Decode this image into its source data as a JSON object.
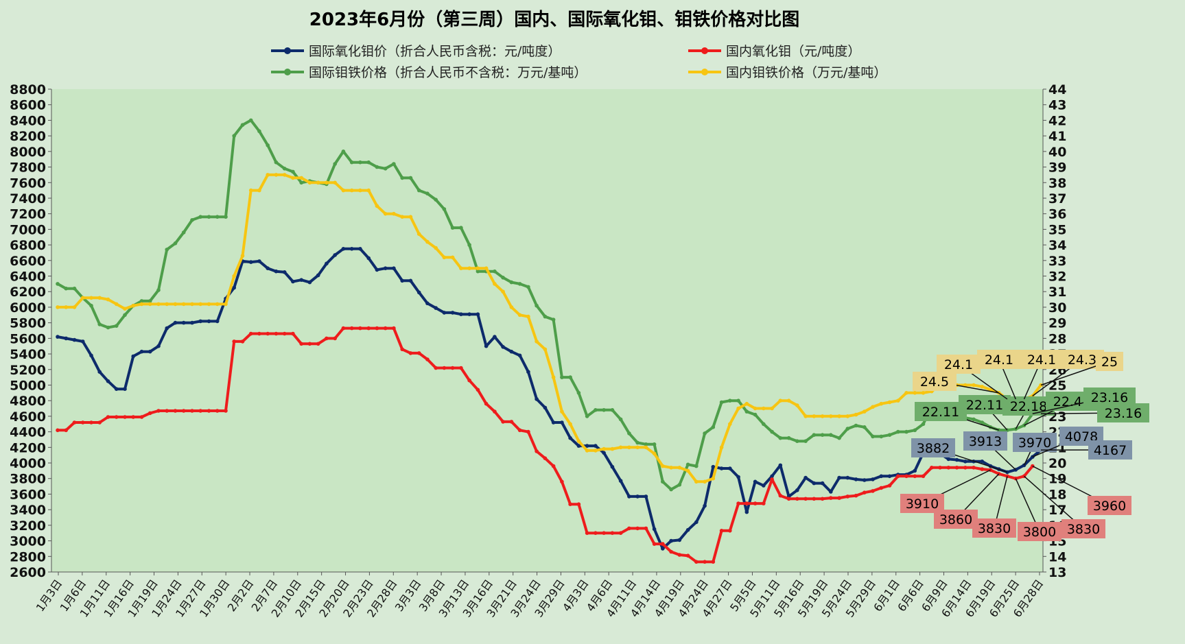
{
  "chart_data": {
    "type": "line",
    "title": "2023年6月份（第三周）国内、国际氧化钼、钼铁价格对比图",
    "xlabel": "",
    "ylabel": "",
    "ylim": [
      2600,
      8800
    ],
    "y2lim": [
      13,
      44
    ],
    "grid": "off",
    "legend_position": "top",
    "x_tick_labels": [
      "1月3日",
      "1月6日",
      "1月11日",
      "1月16日",
      "1月19日",
      "1月24日",
      "1月27日",
      "1月30日",
      "2月2日",
      "2月7日",
      "2月10日",
      "2月15日",
      "2月20日",
      "2月23日",
      "2月28日",
      "3月3日",
      "3月8日",
      "3月13日",
      "3月16日",
      "3月21日",
      "3月24日",
      "3月29日",
      "4月3日",
      "4月6日",
      "4月11日",
      "4月14日",
      "4月19日",
      "4月24日",
      "4月27日",
      "5月5日",
      "5月11日",
      "5月16日",
      "5月19日",
      "5月24日",
      "5月29日",
      "6月1日",
      "6月6日",
      "6月9日",
      "6月14日",
      "6月19日",
      "6月25日",
      "6月28日"
    ],
    "y_ticks": [
      "2600",
      "2800",
      "3000",
      "3200",
      "3400",
      "3600",
      "3800",
      "4000",
      "4200",
      "4400",
      "4600",
      "4800",
      "5000",
      "5200",
      "5400",
      "5600",
      "5800",
      "6000",
      "6200",
      "6400",
      "6600",
      "6800",
      "7000",
      "7200",
      "7400",
      "7600",
      "7800",
      "8000",
      "8200",
      "8400",
      "8600",
      "8800"
    ],
    "y2_ticks": [
      "13",
      "14",
      "15",
      "16",
      "17",
      "18",
      "19",
      "20",
      "21",
      "22",
      "23",
      "24",
      "25",
      "26",
      "27",
      "28",
      "29",
      "30",
      "31",
      "32",
      "33",
      "34",
      "35",
      "36",
      "37",
      "38",
      "39",
      "40",
      "41",
      "42",
      "43",
      "44"
    ],
    "series": [
      {
        "name": "国际氧化钼价（折合人民币含税：元/吨度）",
        "color": "#0d2b6b",
        "axis": "left",
        "values": [
          5620,
          5600,
          5580,
          5560,
          5380,
          5170,
          5050,
          4950,
          4950,
          5370,
          5430,
          5430,
          5500,
          5730,
          5800,
          5800,
          5800,
          5820,
          5820,
          5820,
          6110,
          6250,
          6590,
          6580,
          6590,
          6500,
          6460,
          6450,
          6330,
          6350,
          6320,
          6410,
          6560,
          6670,
          6750,
          6750,
          6750,
          6630,
          6480,
          6500,
          6500,
          6340,
          6340,
          6190,
          6050,
          5990,
          5930,
          5930,
          5910,
          5910,
          5910,
          5500,
          5620,
          5490,
          5430,
          5380,
          5170,
          4820,
          4710,
          4520,
          4520,
          4320,
          4220,
          4220,
          4220,
          4130,
          3950,
          3770,
          3570,
          3570,
          3570,
          3150,
          2900,
          3000,
          3010,
          3140,
          3240,
          3450,
          3950,
          3930,
          3930,
          3820,
          3370,
          3760,
          3710,
          3830,
          3970,
          3570,
          3650,
          3810,
          3740,
          3740,
          3630,
          3810,
          3810,
          3790,
          3780,
          3790,
          3830,
          3830,
          3850,
          3850,
          3900,
          4130,
          4130,
          4120,
          4050,
          4040,
          4020,
          4020,
          4020,
          3960,
          3920,
          3882,
          3913,
          3970,
          4078,
          4167
        ],
        "labels": [
          "3882",
          "3913",
          "3970",
          "4078",
          "4167"
        ]
      },
      {
        "name": "国内氧化钼（元/吨度）",
        "color": "#ee1c1c",
        "axis": "left",
        "values": [
          4420,
          4420,
          4520,
          4520,
          4520,
          4520,
          4590,
          4590,
          4590,
          4590,
          4590,
          4640,
          4670,
          4670,
          4670,
          4670,
          4670,
          4670,
          4670,
          4670,
          4670,
          5560,
          5560,
          5660,
          5660,
          5660,
          5660,
          5660,
          5660,
          5530,
          5530,
          5530,
          5600,
          5600,
          5730,
          5730,
          5730,
          5730,
          5730,
          5730,
          5730,
          5460,
          5410,
          5410,
          5330,
          5220,
          5220,
          5220,
          5220,
          5060,
          4940,
          4760,
          4660,
          4530,
          4530,
          4420,
          4400,
          4150,
          4060,
          3960,
          3760,
          3470,
          3470,
          3100,
          3100,
          3100,
          3100,
          3100,
          3160,
          3160,
          3160,
          2960,
          2960,
          2860,
          2820,
          2810,
          2730,
          2730,
          2730,
          3130,
          3130,
          3480,
          3480,
          3480,
          3480,
          3790,
          3580,
          3540,
          3540,
          3540,
          3540,
          3540,
          3550,
          3550,
          3570,
          3580,
          3620,
          3640,
          3680,
          3710,
          3830,
          3830,
          3830,
          3830,
          3940,
          3940,
          3940,
          3940,
          3940,
          3940,
          3920,
          3910,
          3860,
          3830,
          3800,
          3830,
          3960
        ],
        "labels": [
          "3910",
          "3860",
          "3830",
          "3800",
          "3830",
          "3960"
        ]
      },
      {
        "name": "国际钼铁价格（折合人民币不含税：万元/基吨）",
        "color": "#4e9e4a",
        "axis": "right",
        "values": [
          31.5,
          31.2,
          31.2,
          30.6,
          30.1,
          28.9,
          28.7,
          28.8,
          29.5,
          30.1,
          30.4,
          30.4,
          31.1,
          33.7,
          34.1,
          34.8,
          35.6,
          35.8,
          35.8,
          35.8,
          35.8,
          41.0,
          41.7,
          42.0,
          41.3,
          40.4,
          39.3,
          38.9,
          38.7,
          38.0,
          38.1,
          38.0,
          37.9,
          39.2,
          40.0,
          39.3,
          39.3,
          39.3,
          39.0,
          38.9,
          39.2,
          38.3,
          38.3,
          37.5,
          37.3,
          36.9,
          36.3,
          35.1,
          35.1,
          34.0,
          32.3,
          32.3,
          32.3,
          31.9,
          31.6,
          31.5,
          31.3,
          30.1,
          29.4,
          29.2,
          25.5,
          25.5,
          24.5,
          23.0,
          23.4,
          23.4,
          23.4,
          22.8,
          21.9,
          21.3,
          21.2,
          21.2,
          18.8,
          18.3,
          18.6,
          19.9,
          19.8,
          21.9,
          22.3,
          23.9,
          24.0,
          24.0,
          23.3,
          23.1,
          22.5,
          22.0,
          21.6,
          21.6,
          21.4,
          21.4,
          21.8,
          21.8,
          21.8,
          21.6,
          22.2,
          22.4,
          22.3,
          21.7,
          21.7,
          21.8,
          22.0,
          22.0,
          22.1,
          22.5,
          23.6,
          23.4,
          23.4,
          23.2,
          22.9,
          22.8,
          22.6,
          22.3,
          22.11,
          22.11,
          22.18,
          22.41,
          23.16,
          23.16
        ],
        "labels": [
          "22.11",
          "22.11",
          "22.18",
          "22.41",
          "23.16",
          "23.16"
        ]
      },
      {
        "name": "国内钼铁价格（万元/基吨）",
        "color": "#f7c512",
        "axis": "right",
        "values": [
          30.0,
          30.0,
          30.0,
          30.6,
          30.6,
          30.6,
          30.5,
          30.2,
          29.9,
          30.1,
          30.2,
          30.2,
          30.2,
          30.2,
          30.2,
          30.2,
          30.2,
          30.2,
          30.2,
          30.2,
          30.2,
          32.0,
          33.3,
          37.5,
          37.5,
          38.5,
          38.5,
          38.5,
          38.3,
          38.3,
          38.0,
          38.0,
          38.0,
          38.0,
          37.5,
          37.5,
          37.5,
          37.5,
          36.5,
          36.0,
          36.0,
          35.8,
          35.8,
          34.7,
          34.2,
          33.8,
          33.2,
          33.2,
          32.5,
          32.5,
          32.5,
          32.5,
          31.5,
          31.0,
          30.0,
          29.5,
          29.4,
          27.8,
          27.3,
          25.5,
          23.3,
          22.5,
          21.4,
          20.8,
          20.8,
          20.9,
          20.9,
          21.0,
          21.0,
          21.0,
          21.0,
          20.6,
          19.8,
          19.7,
          19.7,
          19.5,
          18.8,
          18.8,
          19.0,
          21.0,
          22.5,
          23.5,
          23.8,
          23.5,
          23.5,
          23.5,
          24.0,
          24.0,
          23.7,
          23.0,
          23.0,
          23.0,
          23.0,
          23.0,
          23.0,
          23.1,
          23.3,
          23.6,
          23.8,
          23.9,
          24.0,
          24.5,
          24.5,
          24.5,
          24.6,
          25.0,
          25.0,
          25.0,
          25.0,
          25.0,
          24.9,
          24.7,
          24.5,
          24.1,
          24.1,
          24.1,
          24.3,
          25.0
        ],
        "labels": [
          "24.5",
          "24.1",
          "24.1",
          "24.1",
          "24.3",
          "25"
        ]
      }
    ]
  }
}
